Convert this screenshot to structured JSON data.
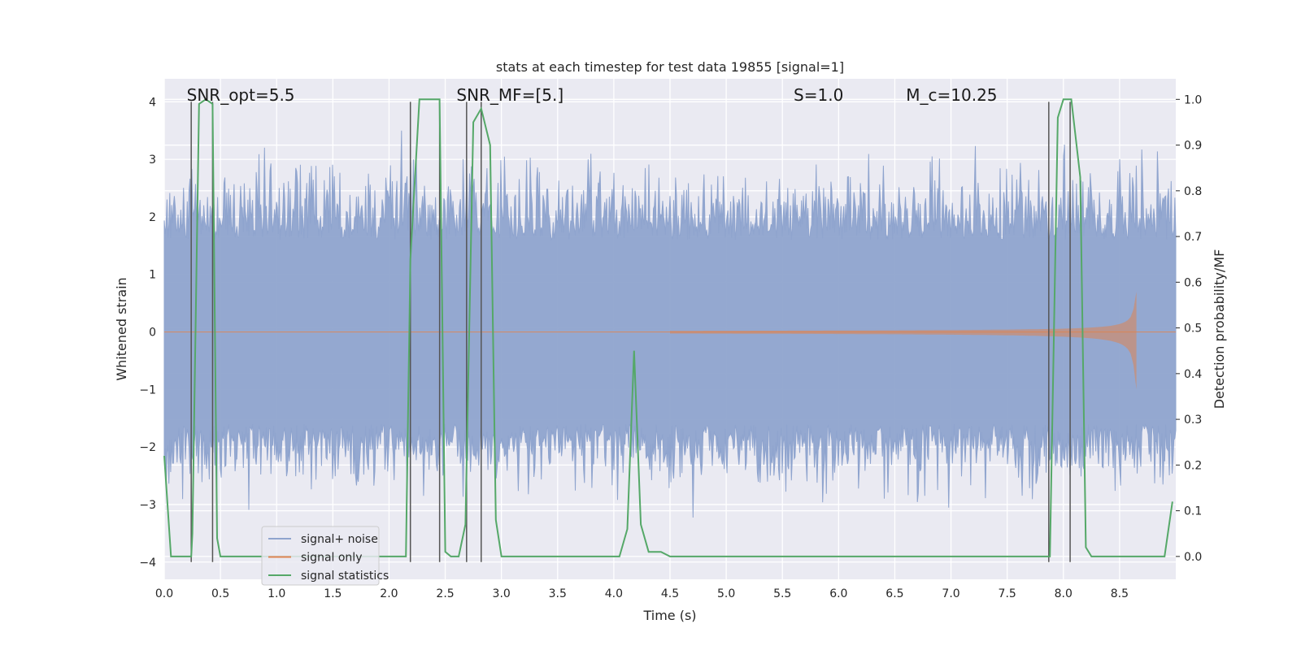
{
  "chart_data": {
    "type": "line",
    "title": "stats at each timestep for test data 19855 [signal=1]",
    "xlabel": "Time (s)",
    "ylabel": "Whitened strain",
    "ylabel_right": "Detection probability/MF",
    "xlim": [
      0.0,
      9.0
    ],
    "ylim": [
      -4.3,
      4.4
    ],
    "ylim_right": [
      -0.05,
      1.045
    ],
    "x_ticks": [
      0.0,
      0.5,
      1.0,
      1.5,
      2.0,
      2.5,
      3.0,
      3.5,
      4.0,
      4.5,
      5.0,
      5.5,
      6.0,
      6.5,
      7.0,
      7.5,
      8.0,
      8.5
    ],
    "x_tick_labels": [
      "0.0",
      "0.5",
      "1.0",
      "1.5",
      "2.0",
      "2.5",
      "3.0",
      "3.5",
      "4.0",
      "4.5",
      "5.0",
      "5.5",
      "6.0",
      "6.5",
      "7.0",
      "7.5",
      "8.0",
      "8.5"
    ],
    "y_ticks": [
      -4,
      -3,
      -2,
      -1,
      0,
      1,
      2,
      3,
      4
    ],
    "y_tick_labels": [
      "−4",
      "−3",
      "−2",
      "−1",
      "0",
      "1",
      "2",
      "3",
      "4"
    ],
    "y_right_ticks": [
      0.0,
      0.1,
      0.2,
      0.3,
      0.4,
      0.5,
      0.6,
      0.7,
      0.8,
      0.9,
      1.0
    ],
    "y_right_tick_labels": [
      "0.0",
      "0.1",
      "0.2",
      "0.3",
      "0.4",
      "0.5",
      "0.6",
      "0.7",
      "0.8",
      "0.9",
      "1.0"
    ],
    "grid": true,
    "annotations": [
      {
        "text": "SNR_opt=5.5",
        "x": 0.2,
        "y": 4.1
      },
      {
        "text": "SNR_MF=[5.]",
        "x": 2.6,
        "y": 4.1
      },
      {
        "text": "S=1.0",
        "x": 5.6,
        "y": 4.1
      },
      {
        "text": "M_c=10.25",
        "x": 6.6,
        "y": 4.1
      }
    ],
    "series": [
      {
        "name": "signal+ noise",
        "axis": "left",
        "color": "#8fa4ce",
        "description_envelope": {
          "core_low": -1.6,
          "core_high": 1.6,
          "peak_max": 3.5,
          "peak_min": -3.4
        }
      },
      {
        "name": "signal only",
        "axis": "left",
        "color": "#dd8452",
        "chirp": {
          "start": 4.5,
          "merger": 8.65,
          "max_amp": 0.7
        }
      },
      {
        "name": "signal statistics",
        "axis": "right",
        "color": "#55a868",
        "x": [
          0.0,
          0.06,
          0.24,
          0.25,
          0.31,
          0.37,
          0.43,
          0.47,
          0.5,
          2.15,
          2.19,
          2.27,
          2.45,
          2.5,
          2.55,
          2.62,
          2.68,
          2.75,
          2.82,
          2.9,
          2.95,
          3.0,
          4.05,
          4.12,
          4.18,
          4.24,
          4.31,
          4.42,
          4.5,
          7.88,
          7.95,
          8.0,
          8.07,
          8.15,
          8.2,
          8.25,
          8.9,
          8.97
        ],
        "values": [
          0.22,
          0.0,
          0.0,
          0.05,
          0.99,
          1.0,
          0.99,
          0.04,
          0.0,
          0.0,
          0.65,
          1.0,
          1.0,
          0.01,
          0.0,
          0.0,
          0.07,
          0.95,
          0.98,
          0.9,
          0.08,
          0.0,
          0.0,
          0.06,
          0.45,
          0.07,
          0.01,
          0.01,
          0.0,
          0.0,
          0.96,
          1.0,
          1.0,
          0.83,
          0.02,
          0.0,
          0.0,
          0.12
        ]
      }
    ],
    "vertical_lines": {
      "color": "#555555",
      "pairs": [
        [
          0.24,
          0.43
        ],
        [
          2.19,
          2.45
        ],
        [
          2.69,
          2.82
        ],
        [
          7.87,
          8.06
        ]
      ]
    },
    "legend": {
      "placement": "lower-left",
      "entries": [
        {
          "label": "signal+ noise",
          "color": "#8fa4ce"
        },
        {
          "label": "signal only",
          "color": "#dd8452"
        },
        {
          "label": "signal statistics",
          "color": "#55a868"
        }
      ]
    },
    "colors": {
      "background": "#eaeaf2",
      "grid": "#ffffff"
    }
  }
}
